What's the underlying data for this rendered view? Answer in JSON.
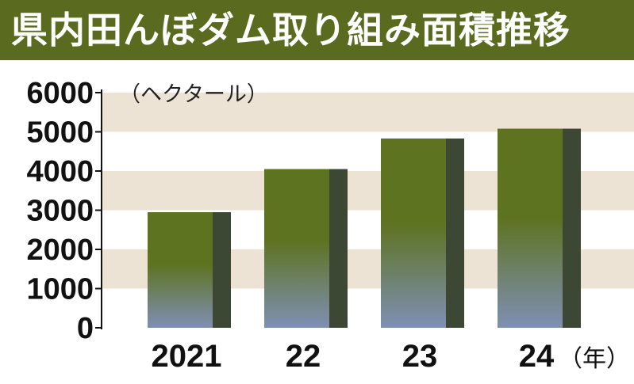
{
  "title": "県内田んぼダム取り組み面積推移",
  "colors": {
    "title_bg": "#5a6b1f",
    "band": "#ede3d4",
    "bar_top": "#5d7320",
    "bar_bottom": "#7f8fb4",
    "bar_side": "#3c4734"
  },
  "chart_data": {
    "type": "bar",
    "title": "県内田んぼダム取り組み面積推移",
    "ylabel": "（ヘクタール）",
    "x_unit": "（年）",
    "categories": [
      "2021",
      "22",
      "23",
      "24"
    ],
    "values": [
      2950,
      4050,
      4830,
      5080
    ],
    "yticks": [
      0,
      1000,
      2000,
      3000,
      4000,
      5000,
      6000
    ],
    "ylim": [
      0,
      6000
    ],
    "grid": "alternating horizontal bands",
    "legend": "none"
  }
}
